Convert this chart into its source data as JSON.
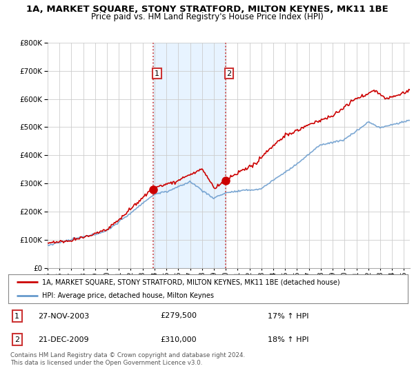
{
  "title": "1A, MARKET SQUARE, STONY STRATFORD, MILTON KEYNES, MK11 1BE",
  "subtitle": "Price paid vs. HM Land Registry's House Price Index (HPI)",
  "legend_line1": "1A, MARKET SQUARE, STONY STRATFORD, MILTON KEYNES, MK11 1BE (detached house)",
  "legend_line2": "HPI: Average price, detached house, Milton Keynes",
  "footer_line1": "Contains HM Land Registry data © Crown copyright and database right 2024.",
  "footer_line2": "This data is licensed under the Open Government Licence v3.0.",
  "annotation1_num": "1",
  "annotation1_date": "27-NOV-2003",
  "annotation1_price": "£279,500",
  "annotation1_hpi": "17% ↑ HPI",
  "annotation2_num": "2",
  "annotation2_date": "21-DEC-2009",
  "annotation2_price": "£310,000",
  "annotation2_hpi": "18% ↑ HPI",
  "sale1_x": 2003.9,
  "sale1_y": 279500,
  "sale2_x": 2009.97,
  "sale2_y": 310000,
  "vline1_x": 2003.9,
  "vline2_x": 2009.97,
  "ylim": [
    0,
    800000
  ],
  "xlim_start": 1995.0,
  "xlim_end": 2025.5,
  "background_color": "#ffffff",
  "plot_bg_color": "#ffffff",
  "grid_color": "#cccccc",
  "red_color": "#cc0000",
  "blue_color": "#6699cc",
  "vline_color": "#cc4444",
  "shade_color": "#ddeeff"
}
